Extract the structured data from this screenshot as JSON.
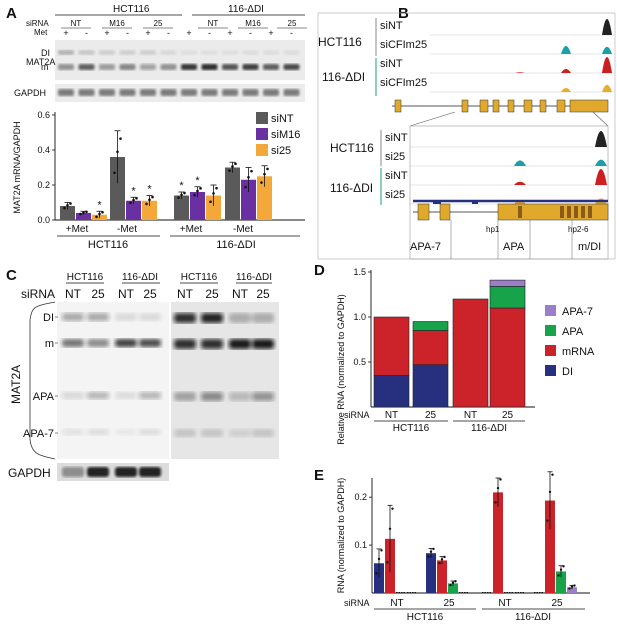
{
  "panels": {
    "a": "A",
    "b": "B",
    "c": "C",
    "d": "D",
    "e": "E"
  },
  "colors": {
    "siNT": "#5a5a5a",
    "siM16": "#6a2fa0",
    "si25": "#f5a83a",
    "DI": "#26307e",
    "mRNA": "#cc2229",
    "APA": "#16a34a",
    "APA7": "#9a7fc8",
    "track_black": "#222222",
    "track_teal": "#1aa0a8",
    "track_red": "#cc1f1f",
    "track_gold": "#e8ad2c",
    "gene": "#e0a92c"
  },
  "panel_a": {
    "top_groups": [
      "HCT116",
      "116-ΔDI"
    ],
    "sirna_label": "siRNA",
    "met_label": "Met",
    "sirna_cols": [
      "NT",
      "M16",
      "25",
      "NT",
      "M16",
      "25"
    ],
    "met_signs": [
      "+",
      "-",
      "+",
      "-",
      "+",
      "-",
      "+",
      "-",
      "+",
      "-",
      "+",
      "-"
    ],
    "blot_labels": {
      "mat2a": "MAT2A",
      "di": "DI",
      "m": "m",
      "gapdh": "GAPDH"
    },
    "x_groups": [
      "+Met",
      "-Met",
      "+Met",
      "-Met"
    ],
    "cell_lines": [
      "HCT116",
      "116-ΔDI"
    ],
    "star": "*",
    "chart_data": {
      "type": "bar",
      "ylabel": "MAT2A mRNA/GAPDH",
      "ylim": [
        0,
        0.6
      ],
      "yticks": [
        "0.0",
        "0.2",
        "0.4",
        "0.6"
      ],
      "categories": [
        "HCT116 +Met",
        "HCT116 -Met",
        "116-ΔDI +Met",
        "116-ΔDI -Met"
      ],
      "series": [
        {
          "name": "siNT",
          "values": [
            0.08,
            0.36,
            0.14,
            0.3
          ],
          "err": [
            0.02,
            0.15,
            0.02,
            0.03
          ]
        },
        {
          "name": "siM16",
          "values": [
            0.04,
            0.11,
            0.16,
            0.23
          ],
          "err": [
            0.01,
            0.02,
            0.03,
            0.07
          ]
        },
        {
          "name": "si25",
          "values": [
            0.03,
            0.11,
            0.14,
            0.25
          ],
          "err": [
            0.02,
            0.03,
            0.06,
            0.06
          ]
        }
      ],
      "stars": [
        [
          false,
          false,
          true
        ],
        [
          false,
          true,
          true
        ],
        [
          true,
          true,
          false
        ],
        [
          false,
          false,
          false
        ]
      ],
      "legend": [
        "siNT",
        "siM16",
        "si25"
      ],
      "legend_placement": "top-right"
    }
  },
  "panel_b": {
    "top_lines": [
      "HCT116",
      "116-ΔDI"
    ],
    "top_tracks": [
      "siNT",
      "siCFIm25",
      "siNT",
      "siCFIm25"
    ],
    "bottom_tracks": [
      "siNT",
      "si25",
      "siNT",
      "si25"
    ],
    "feature_labels": {
      "hp1": "hp1",
      "hp26": "hp2-6",
      "apa7": "APA-7",
      "apa": "APA",
      "mdi": "m/DI"
    }
  },
  "panel_c": {
    "groups": [
      "HCT116",
      "116-ΔDI",
      "HCT116",
      "116-ΔDI"
    ],
    "sirna_label": "siRNA",
    "lanes": [
      "NT",
      "25",
      "NT",
      "25",
      "NT",
      "25",
      "NT",
      "25"
    ],
    "band_labels": [
      "DI",
      "m",
      "APA",
      "APA-7"
    ],
    "mat2a": "MAT2A",
    "gapdh": "GAPDH"
  },
  "panel_d": {
    "chart_data": {
      "type": "bar",
      "stacked": true,
      "ylabel": "Relative RNA (normalized to GAPDH)",
      "ylim": [
        0,
        1.5
      ],
      "yticks": [
        "0.5",
        "1.0",
        "1.5"
      ],
      "categories": [
        "NT",
        "25",
        "NT",
        "25"
      ],
      "cell_lines": [
        "HCT116",
        "116-ΔDI"
      ],
      "series": [
        {
          "name": "DI",
          "values": [
            0.35,
            0.47,
            0,
            0
          ]
        },
        {
          "name": "mRNA",
          "values": [
            0.65,
            0.38,
            1.2,
            1.1
          ]
        },
        {
          "name": "APA",
          "values": [
            0,
            0.1,
            0,
            0.24
          ]
        },
        {
          "name": "APA-7",
          "values": [
            0,
            0,
            0,
            0.07
          ]
        }
      ],
      "legend": [
        "APA-7",
        "APA",
        "mRNA",
        "DI"
      ],
      "legend_placement": "right",
      "xlabel_prefix": "siRNA"
    }
  },
  "panel_e": {
    "chart_data": {
      "type": "bar",
      "ylabel": "RNA (normalized to GAPDH)",
      "ylim": [
        0,
        0.24
      ],
      "yticks": [
        "0.1",
        "0.2"
      ],
      "categories": [
        "NT",
        "25",
        "NT",
        "25"
      ],
      "cell_lines": [
        "HCT116",
        "116-ΔDI"
      ],
      "series": [
        {
          "name": "DI",
          "values": [
            0.062,
            0.083,
            0,
            0
          ],
          "err": [
            0.03,
            0.01,
            0,
            0
          ]
        },
        {
          "name": "mRNA",
          "values": [
            0.113,
            0.068,
            0.21,
            0.193
          ],
          "err": [
            0.07,
            0.008,
            0.03,
            0.06
          ]
        },
        {
          "name": "APA",
          "values": [
            0,
            0.02,
            0,
            0.045
          ],
          "err": [
            0,
            0.005,
            0,
            0.012
          ]
        },
        {
          "name": "APA-7",
          "values": [
            0,
            0,
            0,
            0.012
          ],
          "err": [
            0,
            0,
            0,
            0.004
          ]
        }
      ],
      "xlabel_prefix": "siRNA"
    }
  }
}
